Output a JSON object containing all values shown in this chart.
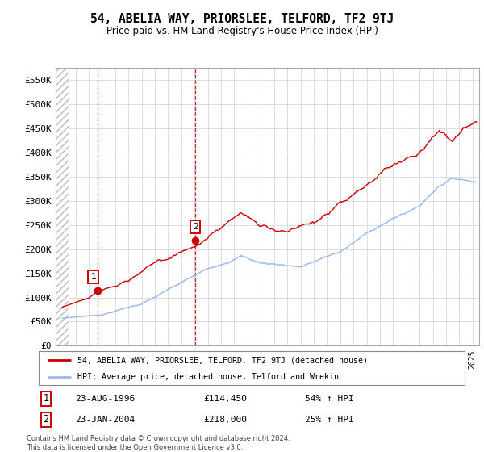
{
  "title": "54, ABELIA WAY, PRIORSLEE, TELFORD, TF2 9TJ",
  "subtitle": "Price paid vs. HM Land Registry's House Price Index (HPI)",
  "legend_line1": "54, ABELIA WAY, PRIORSLEE, TELFORD, TF2 9TJ (detached house)",
  "legend_line2": "HPI: Average price, detached house, Telford and Wrekin",
  "sale1_label": "1",
  "sale1_date": "23-AUG-1996",
  "sale1_price": "£114,450",
  "sale1_hpi": "54% ↑ HPI",
  "sale1_x": 1996.64,
  "sale1_y": 114450,
  "sale2_label": "2",
  "sale2_date": "23-JAN-2004",
  "sale2_price": "£218,000",
  "sale2_hpi": "25% ↑ HPI",
  "sale2_x": 2004.06,
  "sale2_y": 218000,
  "footer": "Contains HM Land Registry data © Crown copyright and database right 2024.\nThis data is licensed under the Open Government Licence v3.0.",
  "grid_color": "#dddddd",
  "sale_line_color": "#cc0000",
  "hpi_line_color": "#99bbee",
  "ylim_min": 0,
  "ylim_max": 575000,
  "yticks": [
    0,
    50000,
    100000,
    150000,
    200000,
    250000,
    300000,
    350000,
    400000,
    450000,
    500000,
    550000
  ],
  "xlim_min": 1993.5,
  "xlim_max": 2025.5,
  "hatch_end": 1994.45
}
